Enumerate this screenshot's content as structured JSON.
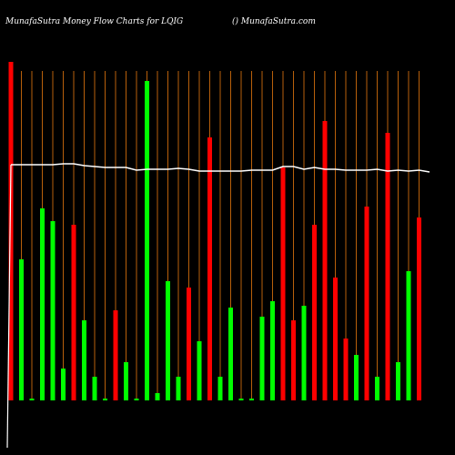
{
  "chart_data": {
    "type": "bar",
    "title": "MunafaSutra  Money Flow  Charts for LQIG",
    "subtitle": "() MunafaSutra.com",
    "values": [
      372,
      155,
      2,
      211,
      197,
      35,
      193,
      88,
      26,
      2,
      99,
      42,
      2,
      351,
      8,
      131,
      26,
      124,
      65,
      289,
      26,
      102,
      2,
      2,
      92,
      109,
      256,
      88,
      104,
      193,
      307,
      135,
      68,
      50,
      213,
      26,
      294,
      42,
      142,
      201
    ],
    "colors": [
      "#ff0000",
      "#00ff00",
      "#00ff00",
      "#00ff00",
      "#00ff00",
      "#00ff00",
      "#ff0000",
      "#00ff00",
      "#00ff00",
      "#00ff00",
      "#ff0000",
      "#00ff00",
      "#00ff00",
      "#00ff00",
      "#00ff00",
      "#00ff00",
      "#00ff00",
      "#ff0000",
      "#00ff00",
      "#ff0000",
      "#00ff00",
      "#00ff00",
      "#00ff00",
      "#00ff00",
      "#00ff00",
      "#00ff00",
      "#ff0000",
      "#ff0000",
      "#00ff00",
      "#ff0000",
      "#ff0000",
      "#ff0000",
      "#ff0000",
      "#00ff00",
      "#ff0000",
      "#00ff00",
      "#ff0000",
      "#00ff00",
      "#00ff00",
      "#ff0000"
    ],
    "line_values": [
      259,
      259,
      259,
      259,
      259,
      260,
      260,
      258,
      257,
      256,
      256,
      256,
      253,
      254,
      254,
      254,
      255,
      254,
      252,
      252,
      252,
      252,
      252,
      253,
      253,
      253,
      257,
      257,
      254,
      256,
      254,
      254,
      253,
      253,
      253,
      254,
      252,
      253,
      252,
      253,
      251
    ],
    "line_color": "#ffffff",
    "ylim": [
      0,
      380
    ],
    "grid": true,
    "grid_color": "#b8600b"
  }
}
